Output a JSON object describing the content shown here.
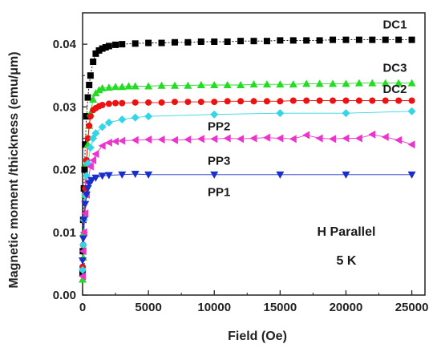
{
  "chart_data": {
    "type": "scatter",
    "title": "",
    "xlabel": "Field (Oe)",
    "ylabel": "Magnetic moment /thickness (emu/μm)",
    "xlim": [
      0,
      26000
    ],
    "ylim": [
      0,
      0.045
    ],
    "x_ticks": [
      0,
      5000,
      10000,
      15000,
      20000,
      25000
    ],
    "x_tick_labels": [
      "0",
      "5000",
      "10000",
      "15000",
      "20000",
      "25000"
    ],
    "y_ticks": [
      0,
      0.01,
      0.02,
      0.03,
      0.04
    ],
    "y_tick_labels": [
      "0.00",
      "0.01",
      "0.02",
      "0.03",
      "0.04"
    ],
    "grid": false,
    "legend": "inline labels",
    "annotations": [
      "H Parallel",
      "5 K"
    ],
    "series": [
      {
        "name": "DC1",
        "color": "#000000",
        "marker": "square",
        "x": [
          0,
          20,
          50,
          100,
          150,
          200,
          300,
          400,
          500,
          600,
          800,
          1000,
          1250,
          1500,
          1750,
          2000,
          2500,
          3000,
          4000,
          5000,
          6000,
          7000,
          8000,
          9000,
          10000,
          11000,
          12000,
          13000,
          14000,
          15000,
          16000,
          17000,
          18000,
          19000,
          20000,
          21000,
          22000,
          23000,
          24000,
          25000
        ],
        "y": [
          0.0035,
          0.007,
          0.012,
          0.017,
          0.02,
          0.024,
          0.0285,
          0.0315,
          0.0335,
          0.035,
          0.0372,
          0.0385,
          0.039,
          0.0393,
          0.0395,
          0.0397,
          0.0399,
          0.04,
          0.0401,
          0.0402,
          0.0402,
          0.0403,
          0.0403,
          0.0404,
          0.0404,
          0.0404,
          0.0405,
          0.0405,
          0.0405,
          0.0406,
          0.0406,
          0.0406,
          0.0406,
          0.0407,
          0.0407,
          0.0407,
          0.0407,
          0.0407,
          0.0407,
          0.0407
        ]
      },
      {
        "name": "DC3",
        "color": "#22dd22",
        "marker": "triangle-up",
        "x": [
          0,
          50,
          100,
          200,
          300,
          400,
          500,
          600,
          800,
          1000,
          1250,
          1500,
          2000,
          2500,
          3000,
          3500,
          4000,
          5000,
          6000,
          7000,
          8000,
          9000,
          10000,
          11000,
          12000,
          13000,
          14000,
          15000,
          16000,
          17000,
          18000,
          19000,
          20000,
          21000,
          22000,
          23000,
          24000,
          25000
        ],
        "y": [
          0.0025,
          0.006,
          0.01,
          0.016,
          0.021,
          0.024,
          0.027,
          0.029,
          0.0312,
          0.0322,
          0.0327,
          0.033,
          0.0331,
          0.0332,
          0.0332,
          0.0333,
          0.0333,
          0.0333,
          0.0334,
          0.0334,
          0.0334,
          0.0335,
          0.0335,
          0.0335,
          0.0335,
          0.0336,
          0.0336,
          0.0336,
          0.0336,
          0.0337,
          0.0337,
          0.0337,
          0.0337,
          0.0338,
          0.0338,
          0.0338,
          0.0338,
          0.0338
        ]
      },
      {
        "name": "DC2",
        "color": "#ee1111",
        "marker": "circle",
        "x": [
          0,
          50,
          100,
          200,
          300,
          400,
          500,
          600,
          800,
          1000,
          1250,
          1500,
          2000,
          2500,
          3000,
          4000,
          5000,
          6000,
          7000,
          8000,
          9000,
          10000,
          11000,
          12000,
          13000,
          14000,
          15000,
          16000,
          17000,
          18000,
          19000,
          20000,
          21000,
          22000,
          23000,
          24000,
          25000
        ],
        "y": [
          0.0045,
          0.008,
          0.012,
          0.017,
          0.0215,
          0.025,
          0.027,
          0.0285,
          0.0295,
          0.0298,
          0.0301,
          0.0303,
          0.0305,
          0.0306,
          0.0306,
          0.0307,
          0.0307,
          0.0307,
          0.0308,
          0.0308,
          0.0308,
          0.0308,
          0.0309,
          0.0309,
          0.0309,
          0.0309,
          0.0309,
          0.031,
          0.031,
          0.031,
          0.031,
          0.031,
          0.031,
          0.031,
          0.031,
          0.031,
          0.031
        ]
      },
      {
        "name": "PP2",
        "color": "#33d6e6",
        "marker": "diamond",
        "x": [
          0,
          50,
          100,
          200,
          300,
          400,
          600,
          800,
          1000,
          1500,
          2000,
          3000,
          4000,
          5000,
          10000,
          15000,
          20000,
          25000
        ],
        "y": [
          0.004,
          0.008,
          0.012,
          0.016,
          0.019,
          0.021,
          0.0235,
          0.025,
          0.0258,
          0.0268,
          0.0275,
          0.028,
          0.0283,
          0.0285,
          0.0288,
          0.029,
          0.029,
          0.0293
        ]
      },
      {
        "name": "PP3",
        "color": "#ee33cc",
        "marker": "triangle-left",
        "x": [
          0,
          50,
          100,
          200,
          300,
          400,
          600,
          800,
          1000,
          1500,
          2000,
          2500,
          3000,
          4000,
          5000,
          6000,
          7000,
          8000,
          9000,
          10000,
          11000,
          12000,
          13000,
          14000,
          15000,
          16000,
          17000,
          18000,
          19000,
          20000,
          21000,
          22000,
          23000,
          24000,
          25000
        ],
        "y": [
          0.003,
          0.007,
          0.01,
          0.013,
          0.016,
          0.018,
          0.0205,
          0.0215,
          0.0225,
          0.0238,
          0.0243,
          0.0245,
          0.0246,
          0.0247,
          0.0248,
          0.0248,
          0.0247,
          0.0248,
          0.0249,
          0.0249,
          0.025,
          0.0249,
          0.025,
          0.0251,
          0.025,
          0.0249,
          0.0255,
          0.025,
          0.0249,
          0.025,
          0.025,
          0.0256,
          0.0252,
          0.0247,
          0.024
        ]
      },
      {
        "name": "PP1",
        "color": "#1a2ecc",
        "marker": "triangle-down",
        "x": [
          0,
          50,
          100,
          200,
          300,
          400,
          500,
          700,
          1000,
          1500,
          2000,
          3000,
          4000,
          5000,
          10000,
          15000,
          20000,
          25000
        ],
        "y": [
          0.0055,
          0.009,
          0.012,
          0.0145,
          0.016,
          0.017,
          0.0178,
          0.0183,
          0.0187,
          0.019,
          0.0191,
          0.0192,
          0.0193,
          0.0192,
          0.0192,
          0.0192,
          0.0192,
          0.0192
        ]
      }
    ],
    "series_labels": [
      {
        "text": "DC1",
        "x": 22800,
        "y": 0.0425
      },
      {
        "text": "DC3",
        "x": 22800,
        "y": 0.0356
      },
      {
        "text": "DC2",
        "x": 22800,
        "y": 0.0322
      },
      {
        "text": "PP2",
        "x": 9500,
        "y": 0.0263
      },
      {
        "text": "PP3",
        "x": 9500,
        "y": 0.0208
      },
      {
        "text": "PP1",
        "x": 9500,
        "y": 0.0158
      }
    ]
  }
}
